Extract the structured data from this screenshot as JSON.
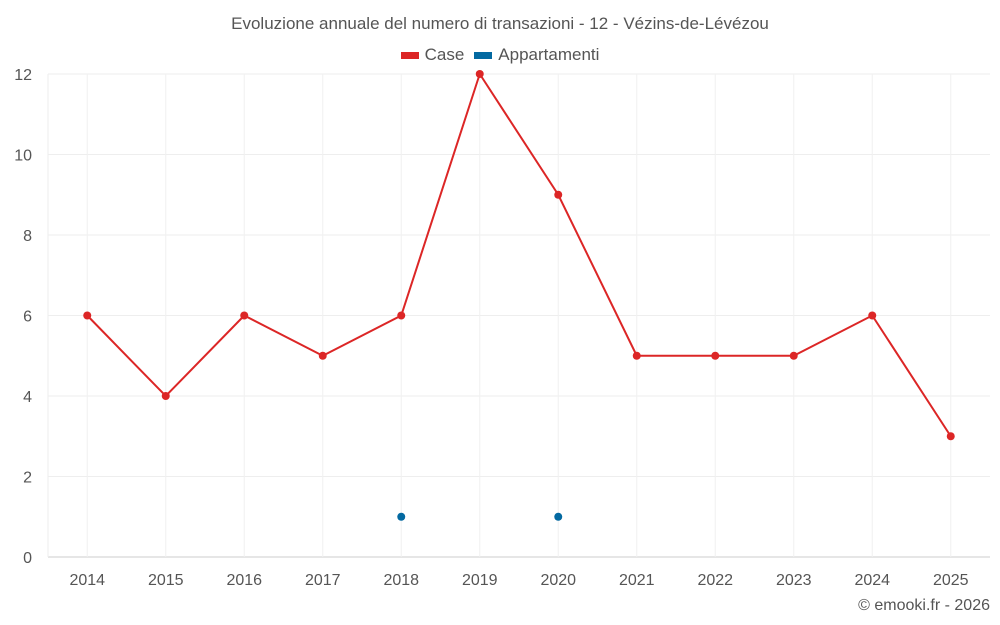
{
  "chart_data": {
    "type": "line",
    "title": "Evoluzione annuale del numero di transazioni - 12 - Vézins-de-Lévézou",
    "categories": [
      "2014",
      "2015",
      "2016",
      "2017",
      "2018",
      "2019",
      "2020",
      "2021",
      "2022",
      "2023",
      "2024",
      "2025"
    ],
    "series": [
      {
        "name": "Case",
        "color": "#dc2626",
        "values": [
          6,
          4,
          6,
          5,
          6,
          12,
          9,
          5,
          5,
          5,
          6,
          3
        ]
      },
      {
        "name": "Appartamenti",
        "color": "#0369a1",
        "values": [
          null,
          null,
          null,
          null,
          1,
          null,
          1,
          null,
          null,
          null,
          null,
          null
        ]
      }
    ],
    "ylim": [
      0,
      12
    ],
    "yticks": [
      0,
      2,
      4,
      6,
      8,
      10,
      12
    ],
    "grid": true,
    "legend_position": "top-center",
    "xlabel": "",
    "ylabel": ""
  },
  "credit": "© emooki.fr - 2026"
}
